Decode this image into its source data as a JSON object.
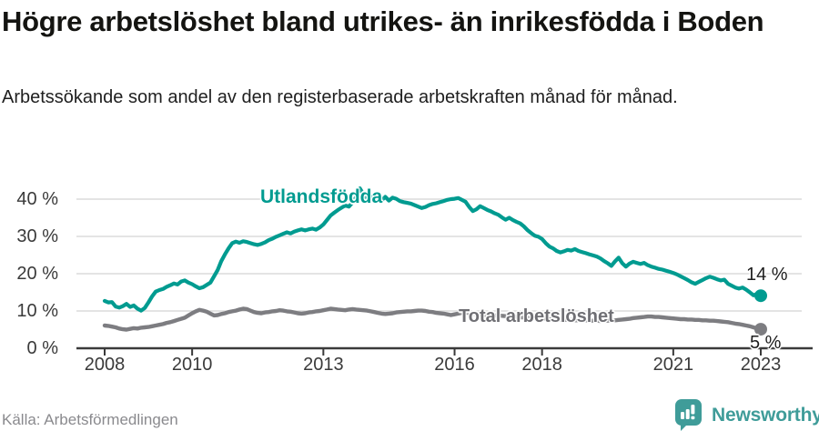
{
  "chart_data": {
    "type": "line",
    "title": "Högre arbetslöshet bland utrikes- än inrikesfödda i Boden",
    "subtitle": "Arbetssökande som andel av den registerbaserade arbetskraften månad för månad.",
    "unit": "%",
    "x_start_year": 2008,
    "x_end_year": 2023,
    "points_per_year": 12,
    "x_ticks": [
      "2008",
      "2010",
      "2013",
      "2016",
      "2018",
      "2021",
      "2023"
    ],
    "x_tick_years": [
      2008,
      2010,
      2013,
      2016,
      2018,
      2021,
      2023
    ],
    "y_ticks": [
      {
        "value": 40,
        "label": "40 %"
      },
      {
        "value": 30,
        "label": "30 %"
      },
      {
        "value": 20,
        "label": "20 %"
      },
      {
        "value": 10,
        "label": "10 %"
      },
      {
        "value": 0,
        "label": "0 %"
      }
    ],
    "ylim": [
      0,
      44
    ],
    "grid": true,
    "legend": "direct-labels-on-lines",
    "series": [
      {
        "name": "Utlandsfödda",
        "color": "#009b90",
        "end_label": "14 %",
        "end_value": 14,
        "values": [
          12.7,
          12.3,
          12.4,
          11.2,
          10.9,
          11.3,
          11.9,
          11.1,
          11.5,
          10.6,
          10.1,
          10.8,
          12.3,
          13.9,
          15.2,
          15.6,
          15.9,
          16.5,
          16.9,
          17.4,
          17.1,
          17.9,
          18.2,
          17.6,
          17.2,
          16.6,
          16.1,
          16.4,
          17.0,
          17.6,
          19.3,
          21.0,
          23.4,
          25.2,
          26.8,
          28.2,
          28.6,
          28.3,
          28.7,
          28.5,
          28.2,
          27.9,
          27.7,
          28.0,
          28.4,
          29.0,
          29.4,
          29.9,
          30.3,
          30.7,
          31.1,
          30.8,
          31.3,
          31.6,
          31.9,
          31.6,
          31.9,
          32.1,
          31.8,
          32.4,
          33.2,
          34.4,
          35.6,
          36.4,
          37.1,
          37.7,
          38.3,
          38.0,
          39.1,
          40.6,
          42.9,
          41.3,
          39.9,
          40.3,
          41.0,
          40.1,
          39.7,
          40.6,
          39.6,
          40.4,
          40.1,
          39.5,
          39.2,
          39.0,
          38.8,
          38.4,
          38.0,
          37.6,
          37.9,
          38.4,
          38.7,
          38.9,
          39.2,
          39.5,
          39.8,
          40.0,
          40.1,
          40.3,
          39.8,
          39.3,
          37.9,
          36.8,
          37.3,
          38.1,
          37.6,
          37.1,
          36.7,
          36.2,
          35.8,
          35.1,
          34.5,
          35.0,
          34.4,
          33.9,
          33.5,
          32.7,
          31.7,
          30.9,
          30.2,
          29.9,
          29.3,
          28.2,
          27.3,
          26.8,
          26.1,
          25.7,
          26.0,
          26.4,
          26.2,
          26.6,
          26.1,
          25.8,
          25.5,
          25.2,
          24.9,
          24.6,
          24.1,
          23.4,
          22.8,
          22.1,
          23.3,
          24.3,
          22.8,
          21.9,
          22.7,
          23.2,
          22.9,
          22.6,
          22.9,
          22.3,
          21.9,
          21.6,
          21.3,
          21.1,
          20.8,
          20.5,
          20.2,
          19.8,
          19.3,
          18.8,
          18.3,
          17.7,
          17.3,
          17.8,
          18.3,
          18.8,
          19.2,
          18.9,
          18.5,
          18.2,
          18.4,
          17.3,
          16.8,
          16.3,
          16.0,
          16.3,
          15.7,
          15.0,
          14.2,
          14.6,
          14.1
        ]
      },
      {
        "name": "Total arbetslöshet",
        "color": "#7d7d81",
        "end_label": "5 %",
        "end_value": 5,
        "values": [
          6.1,
          6.0,
          5.8,
          5.6,
          5.3,
          5.1,
          5.0,
          5.2,
          5.4,
          5.3,
          5.5,
          5.6,
          5.7,
          5.9,
          6.1,
          6.3,
          6.5,
          6.8,
          7.0,
          7.3,
          7.6,
          7.9,
          8.2,
          8.8,
          9.4,
          9.9,
          10.3,
          10.1,
          9.8,
          9.3,
          8.8,
          8.9,
          9.2,
          9.4,
          9.7,
          9.9,
          10.1,
          10.4,
          10.6,
          10.5,
          10.1,
          9.7,
          9.5,
          9.4,
          9.6,
          9.7,
          9.9,
          10.0,
          10.2,
          10.1,
          9.9,
          9.8,
          9.6,
          9.4,
          9.3,
          9.4,
          9.6,
          9.7,
          9.9,
          10.0,
          10.2,
          10.4,
          10.6,
          10.5,
          10.4,
          10.3,
          10.2,
          10.4,
          10.5,
          10.4,
          10.3,
          10.2,
          10.1,
          9.9,
          9.7,
          9.5,
          9.3,
          9.2,
          9.3,
          9.4,
          9.6,
          9.7,
          9.8,
          9.9,
          9.9,
          10.0,
          10.1,
          10.1,
          10.0,
          9.8,
          9.7,
          9.5,
          9.4,
          9.3,
          9.1,
          8.9,
          9.1,
          9.3,
          9.5,
          9.6,
          9.4,
          9.3,
          9.2,
          9.1,
          9.0,
          8.9,
          8.9,
          8.8,
          8.8,
          8.7,
          8.6,
          8.5,
          8.5,
          8.4,
          8.3,
          8.3,
          8.2,
          8.1,
          8.1,
          8.0,
          8.0,
          7.9,
          7.8,
          7.8,
          7.7,
          7.7,
          7.6,
          7.6,
          7.6,
          7.5,
          7.5,
          7.5,
          7.5,
          7.4,
          7.4,
          7.4,
          7.3,
          7.3,
          7.4,
          7.4,
          7.5,
          7.6,
          7.7,
          7.8,
          7.9,
          8.1,
          8.2,
          8.3,
          8.4,
          8.5,
          8.5,
          8.4,
          8.4,
          8.3,
          8.2,
          8.1,
          8.0,
          7.9,
          7.8,
          7.8,
          7.7,
          7.7,
          7.6,
          7.6,
          7.5,
          7.5,
          7.4,
          7.4,
          7.3,
          7.2,
          7.1,
          7.0,
          6.8,
          6.6,
          6.5,
          6.3,
          6.1,
          5.9,
          5.6,
          5.3,
          5.1
        ]
      }
    ]
  },
  "footer": {
    "source": "Källa: Arbetsförmedlingen",
    "brand": "Newsworthy"
  },
  "colors": {
    "accent_teal": "#009b90",
    "line_gray": "#7d7d81",
    "brand_teal": "#3f9c99",
    "axis": "#3a3a3a",
    "grid": "#dcdcdc",
    "title_text": "#141411",
    "muted_text": "#8a8a8e"
  }
}
